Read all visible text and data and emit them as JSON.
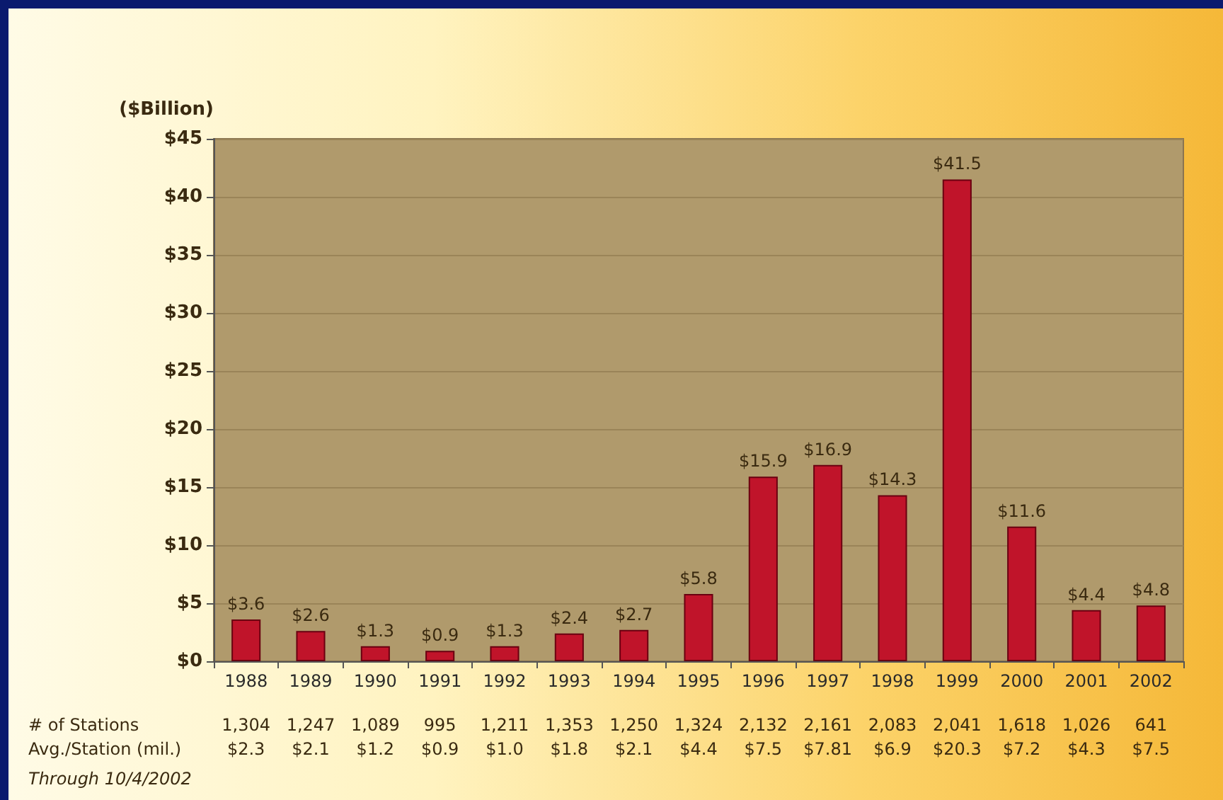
{
  "chart_data": {
    "type": "bar",
    "ylabel": "($Billion)",
    "categories": [
      "1988",
      "1989",
      "1990",
      "1991",
      "1992",
      "1993",
      "1994",
      "1995",
      "1996",
      "1997",
      "1998",
      "1999",
      "2000",
      "2001",
      "2002"
    ],
    "values": [
      3.6,
      2.6,
      1.3,
      0.9,
      1.3,
      2.4,
      2.7,
      5.8,
      15.9,
      16.9,
      14.3,
      41.5,
      11.6,
      4.4,
      4.8
    ],
    "value_labels": [
      "$3.6",
      "$2.6",
      "$1.3",
      "$0.9",
      "$1.3",
      "$2.4",
      "$2.7",
      "$5.8",
      "$15.9",
      "$16.9",
      "$14.3",
      "$41.5",
      "$11.6",
      "$4.4",
      "$4.8"
    ],
    "color": "#c0142a",
    "ylim": [
      0,
      45
    ],
    "yticks": [
      {
        "value": 0,
        "label": "$0"
      },
      {
        "value": 5,
        "label": "$5"
      },
      {
        "value": 10,
        "label": "$10"
      },
      {
        "value": 15,
        "label": "$15"
      },
      {
        "value": 20,
        "label": "$20"
      },
      {
        "value": 25,
        "label": "$25"
      },
      {
        "value": 30,
        "label": "$30"
      },
      {
        "value": 35,
        "label": "$35"
      },
      {
        "value": 40,
        "label": "$40"
      },
      {
        "value": 45,
        "label": "$45"
      }
    ],
    "grid": "y",
    "annotations": [
      "# of Stations",
      "1,304",
      "1,247",
      "1,089",
      "995",
      "1,211",
      "1,353",
      "1,250",
      "1,324",
      "2,132",
      "2,161",
      "2,083",
      "2,041",
      "1,618",
      "1,026",
      "641",
      "Avg./Station (mil.)",
      "$2.3",
      "$2.1",
      "$1.2",
      "$0.9",
      "$1.0",
      "$1.8",
      "$2.1",
      "$4.4",
      "$7.5",
      "$7.81",
      "$6.9",
      "$20.3",
      "$7.2",
      "$4.3",
      "$7.5",
      "Through 10/4/2002"
    ]
  }
}
